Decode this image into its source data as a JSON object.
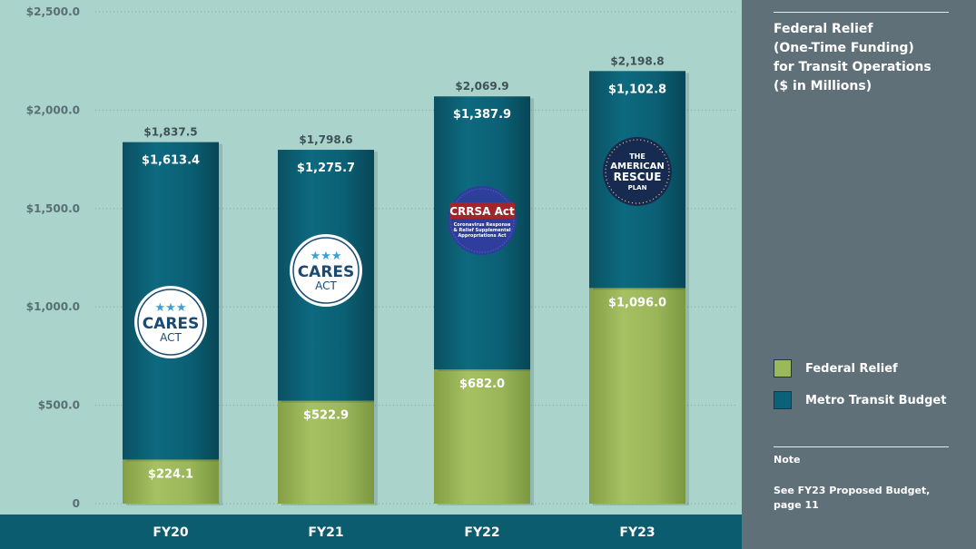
{
  "chart_data": {
    "type": "bar",
    "stacked": true,
    "title": "Federal Relief\n(One-Time Funding)\nfor Transit Operations\n($ in Millions)",
    "categories": [
      "FY20",
      "FY21",
      "FY22",
      "FY23"
    ],
    "series": [
      {
        "name": "Federal Relief",
        "color": "#9bb85a",
        "values": [
          224.1,
          522.9,
          682.0,
          1096.0
        ],
        "labels": [
          "$224.1",
          "$522.9",
          "$682.0",
          "$1,096.0"
        ]
      },
      {
        "name": "Metro Transit Budget",
        "color": "#0a6179",
        "values": [
          1613.4,
          1275.7,
          1387.9,
          1102.8
        ],
        "labels": [
          "$1,613.4",
          "$1,275.7",
          "$1,387.9",
          "$1,102.8"
        ]
      }
    ],
    "totals": [
      1837.5,
      1798.6,
      2069.9,
      2198.8
    ],
    "total_labels": [
      "$1,837.5",
      "$1,798.6",
      "$2,069.9",
      "$2,198.8"
    ],
    "y_ticks": [
      0,
      500,
      1000,
      1500,
      2000,
      2500
    ],
    "y_tick_labels": [
      "0",
      "$500.0",
      "$1,000.0",
      "$1,500.0",
      "$2,000.0",
      "$2,500.0"
    ],
    "ylim": [
      0,
      2500
    ],
    "grid": true,
    "legend_position": "right",
    "xlabel": "",
    "ylabel": ""
  },
  "badges": [
    {
      "name": "cares-act-badge-fy20",
      "category": "FY20",
      "type": "cares",
      "stars": "★★★",
      "line1": "CARES",
      "line2": "ACT"
    },
    {
      "name": "cares-act-badge-fy21",
      "category": "FY21",
      "type": "cares",
      "stars": "★★★",
      "line1": "CARES",
      "line2": "ACT"
    },
    {
      "name": "crrsa-act-badge-fy22",
      "category": "FY22",
      "type": "crrsa",
      "line1": "CRRSA Act",
      "line2": "Coronavirus Response",
      "line3": "& Relief Supplemental",
      "line4": "Appropriations Act"
    },
    {
      "name": "american-rescue-plan-badge-fy23",
      "category": "FY23",
      "type": "arp",
      "line1": "THE",
      "line2": "AMERICAN",
      "line3": "RESCUE",
      "line4": "PLAN"
    }
  ],
  "panel": {
    "title": "Federal Relief\n(One-Time Funding)\nfor Transit Operations\n($ in Millions)",
    "legend": [
      {
        "label": "Federal Relief",
        "color": "#9bb85a"
      },
      {
        "label": "Metro Transit Budget",
        "color": "#0a6179"
      }
    ],
    "note_title": "Note",
    "note_text": "See FY23 Proposed Budget,\npage 11"
  }
}
